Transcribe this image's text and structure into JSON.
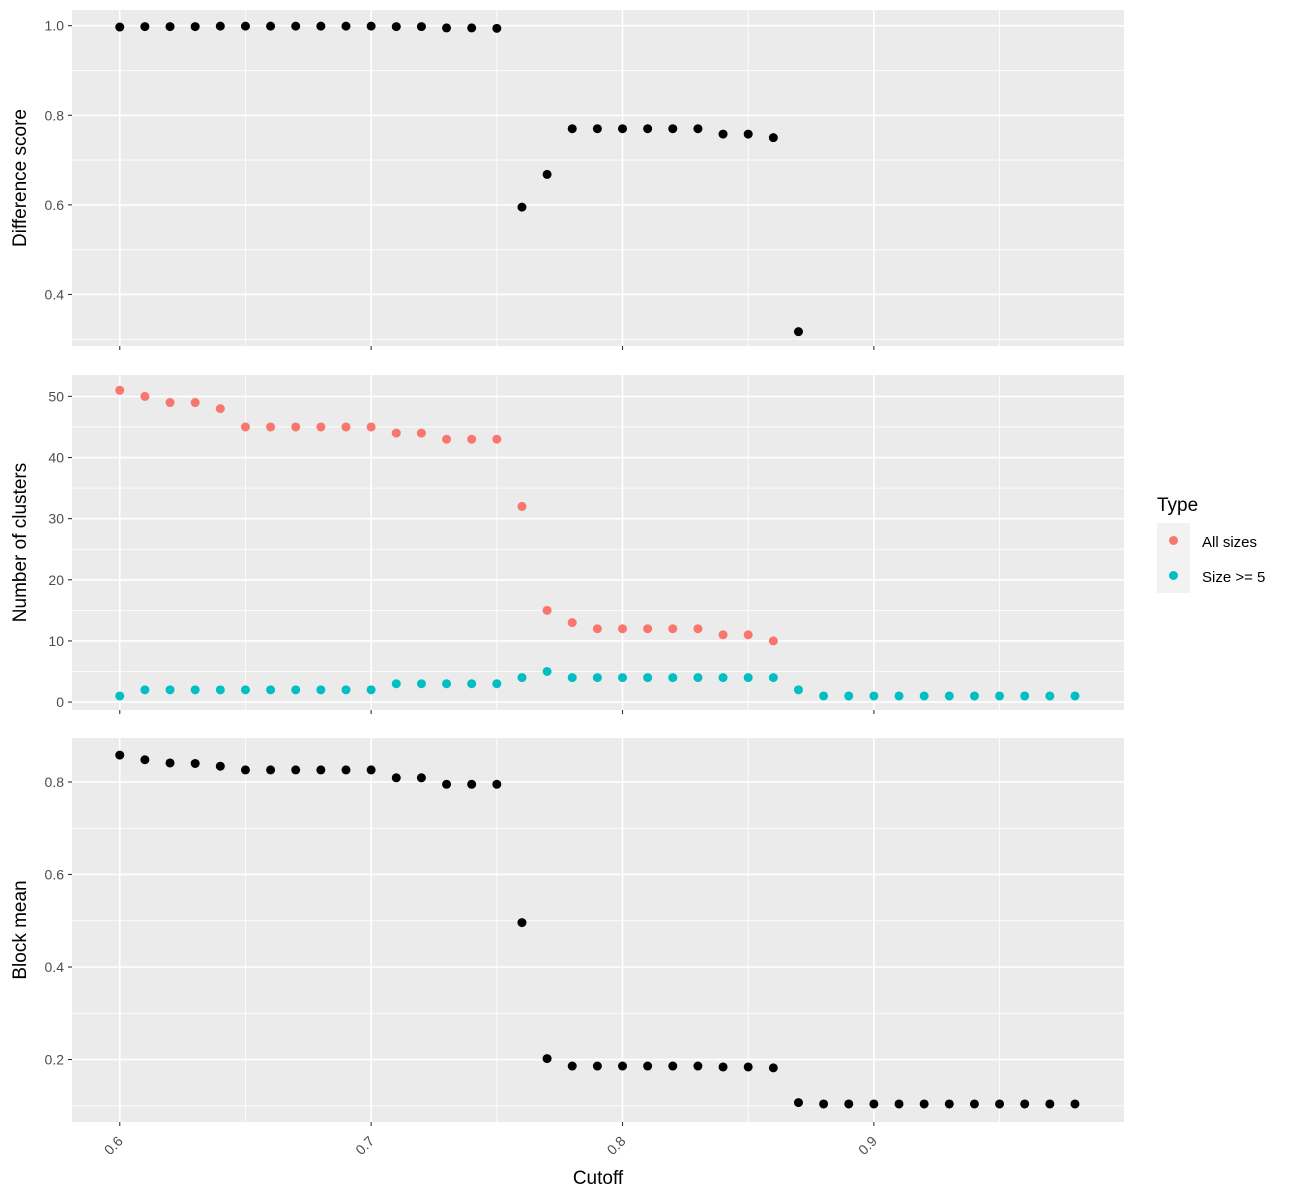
{
  "chart_data": [
    {
      "type": "scatter",
      "panel": "top",
      "ylabel": "Difference score",
      "ylim": [
        0.285,
        1.035
      ],
      "yticks": [
        0.4,
        0.6,
        0.8,
        1.0
      ],
      "ytick_labels": [
        "0.4",
        "0.6",
        "0.8",
        "1.0"
      ],
      "grid": true,
      "series": [
        {
          "color": "#000000",
          "x": [
            0.6,
            0.61,
            0.62,
            0.63,
            0.64,
            0.65,
            0.66,
            0.67,
            0.68,
            0.69,
            0.7,
            0.71,
            0.72,
            0.73,
            0.74,
            0.75,
            0.76,
            0.77,
            0.78,
            0.79,
            0.8,
            0.81,
            0.82,
            0.83,
            0.84,
            0.85,
            0.86,
            0.87
          ],
          "y": [
            0.997,
            0.998,
            0.998,
            0.998,
            0.999,
            0.999,
            0.999,
            0.999,
            0.999,
            0.999,
            0.999,
            0.998,
            0.998,
            0.995,
            0.995,
            0.994,
            0.595,
            0.668,
            0.77,
            0.77,
            0.77,
            0.77,
            0.77,
            0.77,
            0.758,
            0.758,
            0.75,
            0.317
          ]
        }
      ]
    },
    {
      "type": "scatter",
      "panel": "middle",
      "ylabel": "Number of clusters",
      "ylim": [
        -1.3,
        53.5
      ],
      "yticks": [
        0,
        10,
        20,
        30,
        40,
        50
      ],
      "ytick_labels": [
        "0",
        "10",
        "20",
        "30",
        "40",
        "50"
      ],
      "grid": true,
      "legend": {
        "title": "Type",
        "position": "right"
      },
      "series": [
        {
          "name": "All sizes",
          "color": "#F8766D",
          "x": [
            0.6,
            0.61,
            0.62,
            0.63,
            0.64,
            0.65,
            0.66,
            0.67,
            0.68,
            0.69,
            0.7,
            0.71,
            0.72,
            0.73,
            0.74,
            0.75,
            0.76,
            0.77,
            0.78,
            0.79,
            0.8,
            0.81,
            0.82,
            0.83,
            0.84,
            0.85,
            0.86
          ],
          "y": [
            51,
            50,
            49,
            49,
            48,
            45,
            45,
            45,
            45,
            45,
            45,
            44,
            44,
            43,
            43,
            43,
            32,
            15,
            13,
            12,
            12,
            12,
            12,
            12,
            11,
            11,
            10
          ]
        },
        {
          "name": "Size >= 5",
          "color": "#00BFC4",
          "x": [
            0.6,
            0.61,
            0.62,
            0.63,
            0.64,
            0.65,
            0.66,
            0.67,
            0.68,
            0.69,
            0.7,
            0.71,
            0.72,
            0.73,
            0.74,
            0.75,
            0.76,
            0.77,
            0.78,
            0.79,
            0.8,
            0.81,
            0.82,
            0.83,
            0.84,
            0.85,
            0.86,
            0.87,
            0.88,
            0.89,
            0.9,
            0.91,
            0.92,
            0.93,
            0.94,
            0.95,
            0.96,
            0.97,
            0.98
          ],
          "y": [
            1,
            2,
            2,
            2,
            2,
            2,
            2,
            2,
            2,
            2,
            2,
            3,
            3,
            3,
            3,
            3,
            4,
            5,
            4,
            4,
            4,
            4,
            4,
            4,
            4,
            4,
            4,
            2,
            1,
            1,
            1,
            1,
            1,
            1,
            1,
            1,
            1,
            1,
            1
          ]
        }
      ]
    },
    {
      "type": "scatter",
      "panel": "bottom",
      "ylabel": "Block mean",
      "xlabel": "Cutoff",
      "ylim": [
        0.065,
        0.895
      ],
      "yticks": [
        0.2,
        0.4,
        0.6,
        0.8
      ],
      "ytick_labels": [
        "0.2",
        "0.4",
        "0.6",
        "0.8"
      ],
      "grid": true,
      "series": [
        {
          "color": "#000000",
          "x": [
            0.6,
            0.61,
            0.62,
            0.63,
            0.64,
            0.65,
            0.66,
            0.67,
            0.68,
            0.69,
            0.7,
            0.71,
            0.72,
            0.73,
            0.74,
            0.75,
            0.76,
            0.77,
            0.78,
            0.79,
            0.8,
            0.81,
            0.82,
            0.83,
            0.84,
            0.85,
            0.86,
            0.87,
            0.88,
            0.89,
            0.9,
            0.91,
            0.92,
            0.93,
            0.94,
            0.95,
            0.96,
            0.97,
            0.98
          ],
          "y": [
            0.858,
            0.848,
            0.841,
            0.84,
            0.834,
            0.826,
            0.826,
            0.826,
            0.826,
            0.826,
            0.826,
            0.809,
            0.809,
            0.795,
            0.795,
            0.795,
            0.496,
            0.202,
            0.186,
            0.186,
            0.186,
            0.186,
            0.186,
            0.186,
            0.184,
            0.184,
            0.182,
            0.107,
            0.104,
            0.104,
            0.104,
            0.104,
            0.104,
            0.104,
            0.104,
            0.104,
            0.104,
            0.104,
            0.104
          ]
        }
      ]
    }
  ],
  "x_axis": {
    "title": "Cutoff",
    "xlim": [
      0.581,
      0.9995
    ],
    "ticks": [
      0.6,
      0.7,
      0.8,
      0.9
    ],
    "tick_labels": [
      "0.6",
      "0.7",
      "0.8",
      "0.9"
    ]
  }
}
